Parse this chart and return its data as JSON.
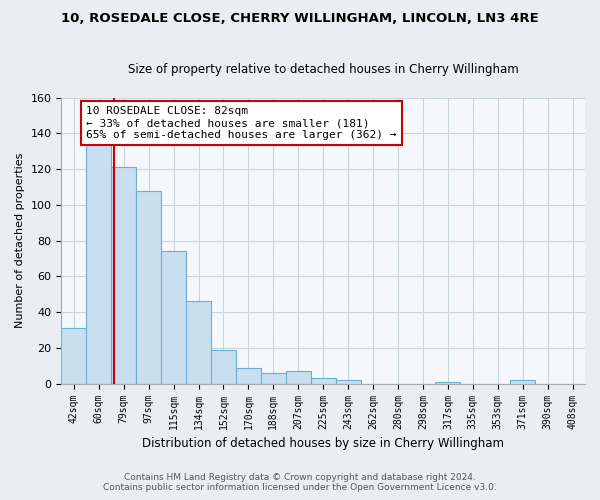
{
  "title_line1": "10, ROSEDALE CLOSE, CHERRY WILLINGHAM, LINCOLN, LN3 4RE",
  "title_line2": "Size of property relative to detached houses in Cherry Willingham",
  "xlabel": "Distribution of detached houses by size in Cherry Willingham",
  "ylabel": "Number of detached properties",
  "footer_line1": "Contains HM Land Registry data © Crown copyright and database right 2024.",
  "footer_line2": "Contains public sector information licensed under the Open Government Licence v3.0.",
  "bar_labels": [
    "42sqm",
    "60sqm",
    "79sqm",
    "97sqm",
    "115sqm",
    "134sqm",
    "152sqm",
    "170sqm",
    "188sqm",
    "207sqm",
    "225sqm",
    "243sqm",
    "262sqm",
    "280sqm",
    "298sqm",
    "317sqm",
    "335sqm",
    "353sqm",
    "371sqm",
    "390sqm",
    "408sqm"
  ],
  "bar_values": [
    31,
    134,
    121,
    108,
    74,
    46,
    19,
    9,
    6,
    7,
    3,
    2,
    0,
    0,
    0,
    1,
    0,
    0,
    2,
    0,
    0
  ],
  "bar_color": "#c8dff0",
  "bar_edge_color": "#6aaed6",
  "vline_color": "#cc0000",
  "vline_x": 1.6,
  "annotation_line1": "10 ROSEDALE CLOSE: 82sqm",
  "annotation_line2": "← 33% of detached houses are smaller (181)",
  "annotation_line3": "65% of semi-detached houses are larger (362) →",
  "annotation_box_facecolor": "white",
  "annotation_box_edgecolor": "#cc0000",
  "ylim": [
    0,
    160
  ],
  "yticks": [
    0,
    20,
    40,
    60,
    80,
    100,
    120,
    140,
    160
  ],
  "background_color": "#e8eef4",
  "plot_background_color": "#f4f8fc",
  "grid_color": "#c8d4de",
  "title1_fontsize": 9.5,
  "title2_fontsize": 8.5
}
